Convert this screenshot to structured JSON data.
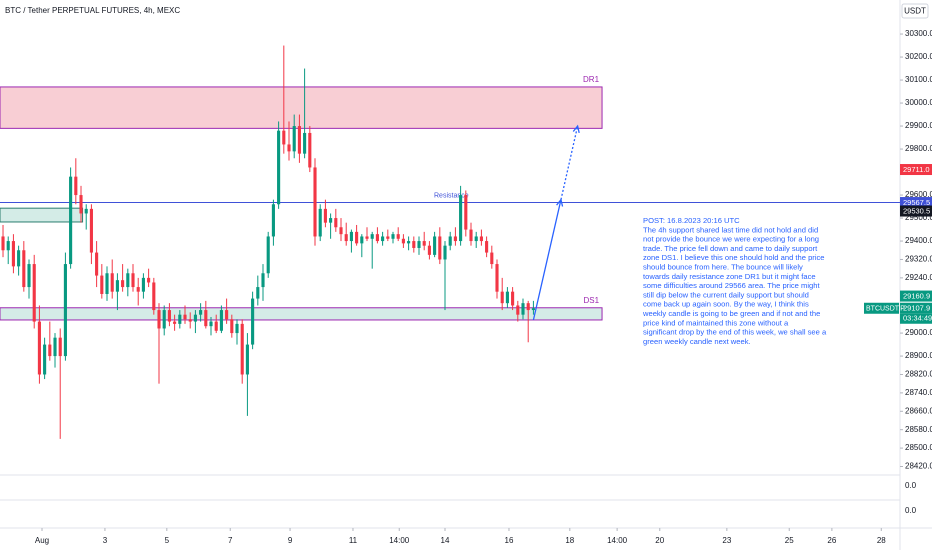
{
  "chart_data": {
    "type": "candlestick",
    "title": "BTC / Tether PERPETUAL FUTURES, 4h, MEXC",
    "currency": "USDT",
    "up_color": "#089981",
    "down_color": "#f23645",
    "grid": false,
    "ylim": [
      28383,
      30448
    ],
    "xlim": [
      -0.58,
      172.5
    ],
    "yticks": [
      {
        "value": 30300,
        "label": "30300.0"
      },
      {
        "value": 30200,
        "label": "30200.0"
      },
      {
        "value": 30100,
        "label": "30100.0"
      },
      {
        "value": 30000,
        "label": "30000.0"
      },
      {
        "value": 29900,
        "label": "29900.0"
      },
      {
        "value": 29800,
        "label": "29800.0"
      },
      {
        "value": 29600,
        "label": "29600.0"
      },
      {
        "value": 29500,
        "label": "29500.0"
      },
      {
        "value": 29400,
        "label": "29400.0"
      },
      {
        "value": 29320,
        "label": "29320.0"
      },
      {
        "value": 29240,
        "label": "29240.0"
      },
      {
        "value": 29000,
        "label": "29000.0"
      },
      {
        "value": 28900,
        "label": "28900.0"
      },
      {
        "value": 28820,
        "label": "28820.0"
      },
      {
        "value": 28740,
        "label": "28740.0"
      },
      {
        "value": 28660,
        "label": "28660.0"
      },
      {
        "value": 28580,
        "label": "28580.0"
      },
      {
        "value": 28500,
        "label": "28500.0"
      },
      {
        "value": 28420,
        "label": "28420.0"
      }
    ],
    "xticks": [
      {
        "value": 7.5,
        "label": "Aug"
      },
      {
        "value": 19.6,
        "label": "3"
      },
      {
        "value": 31.5,
        "label": "5"
      },
      {
        "value": 43.7,
        "label": "7"
      },
      {
        "value": 55.2,
        "label": "9"
      },
      {
        "value": 67.3,
        "label": "11"
      },
      {
        "value": 76.2,
        "label": "14:00"
      },
      {
        "value": 85.0,
        "label": "14"
      },
      {
        "value": 97.3,
        "label": "16"
      },
      {
        "value": 109.0,
        "label": "18"
      },
      {
        "value": 118.1,
        "label": "14:00"
      },
      {
        "value": 126.3,
        "label": "20"
      },
      {
        "value": 139.2,
        "label": "23"
      },
      {
        "value": 151.2,
        "label": "25"
      },
      {
        "value": 159.4,
        "label": "26"
      },
      {
        "value": 168.9,
        "label": "28"
      }
    ],
    "candles": [
      [
        29420,
        29470,
        29330,
        29360
      ],
      [
        29360,
        29420,
        29300,
        29400
      ],
      [
        29400,
        29430,
        29260,
        29290
      ],
      [
        29290,
        29380,
        29250,
        29360
      ],
      [
        29360,
        29400,
        29180,
        29200
      ],
      [
        29200,
        29320,
        29150,
        29300
      ],
      [
        29300,
        29340,
        29020,
        29050
      ],
      [
        29050,
        29120,
        28780,
        28820
      ],
      [
        28820,
        28980,
        28800,
        28950
      ],
      [
        28950,
        29050,
        28880,
        28900
      ],
      [
        28900,
        29000,
        28850,
        28980
      ],
      [
        28980,
        29020,
        28540,
        28900
      ],
      [
        28900,
        29350,
        28880,
        29300
      ],
      [
        29300,
        29720,
        29280,
        29680
      ],
      [
        29680,
        29760,
        29560,
        29600
      ],
      [
        29600,
        29640,
        29480,
        29520
      ],
      [
        29520,
        29560,
        29450,
        29540
      ],
      [
        29540,
        29560,
        29300,
        29350
      ],
      [
        29350,
        29400,
        29200,
        29250
      ],
      [
        29250,
        29300,
        29150,
        29170
      ],
      [
        29170,
        29290,
        29140,
        29260
      ],
      [
        29260,
        29320,
        29150,
        29180
      ],
      [
        29180,
        29260,
        29100,
        29230
      ],
      [
        29230,
        29300,
        29180,
        29200
      ],
      [
        29200,
        29280,
        29160,
        29260
      ],
      [
        29260,
        29300,
        29180,
        29200
      ],
      [
        29200,
        29240,
        29120,
        29180
      ],
      [
        29180,
        29260,
        29150,
        29240
      ],
      [
        29240,
        29280,
        29200,
        29220
      ],
      [
        29220,
        29240,
        29080,
        29100
      ],
      [
        29100,
        29130,
        28780,
        29020
      ],
      [
        29020,
        29120,
        28990,
        29100
      ],
      [
        29100,
        29130,
        29030,
        29050
      ],
      [
        29050,
        29080,
        29010,
        29040
      ],
      [
        29040,
        29100,
        29020,
        29080
      ],
      [
        29080,
        29120,
        29040,
        29060
      ],
      [
        29060,
        29090,
        29020,
        29050
      ],
      [
        29050,
        29100,
        29000,
        29080
      ],
      [
        29080,
        29130,
        29050,
        29100
      ],
      [
        29100,
        29140,
        29020,
        29030
      ],
      [
        29030,
        29070,
        28990,
        29050
      ],
      [
        29050,
        29080,
        29000,
        29010
      ],
      [
        29010,
        29120,
        29000,
        29100
      ],
      [
        29100,
        29150,
        29040,
        29060
      ],
      [
        29060,
        29080,
        28980,
        29000
      ],
      [
        29000,
        29060,
        28950,
        29040
      ],
      [
        29040,
        29060,
        28780,
        28820
      ],
      [
        28820,
        29000,
        28640,
        28950
      ],
      [
        28950,
        29180,
        28930,
        29150
      ],
      [
        29150,
        29250,
        29120,
        29200
      ],
      [
        29200,
        29300,
        29140,
        29260
      ],
      [
        29260,
        29440,
        29240,
        29420
      ],
      [
        29420,
        29580,
        29380,
        29560
      ],
      [
        29560,
        29920,
        29540,
        29880
      ],
      [
        29880,
        30250,
        29780,
        29820
      ],
      [
        29820,
        29920,
        29750,
        29790
      ],
      [
        29790,
        29950,
        29760,
        29900
      ],
      [
        29900,
        29950,
        29740,
        29780
      ],
      [
        29780,
        30150,
        29760,
        29870
      ],
      [
        29870,
        29900,
        29700,
        29720
      ],
      [
        29720,
        29760,
        29380,
        29420
      ],
      [
        29420,
        29560,
        29400,
        29540
      ],
      [
        29540,
        29580,
        29460,
        29480
      ],
      [
        29480,
        29520,
        29410,
        29500
      ],
      [
        29500,
        29540,
        29440,
        29460
      ],
      [
        29460,
        29500,
        29400,
        29430
      ],
      [
        29430,
        29480,
        29380,
        29400
      ],
      [
        29400,
        29450,
        29350,
        29440
      ],
      [
        29440,
        29470,
        29380,
        29390
      ],
      [
        29390,
        29430,
        29330,
        29420
      ],
      [
        29420,
        29460,
        29400,
        29410
      ],
      [
        29410,
        29440,
        29280,
        29430
      ],
      [
        29430,
        29460,
        29390,
        29400
      ],
      [
        29400,
        29440,
        29380,
        29420
      ],
      [
        29420,
        29450,
        29400,
        29410
      ],
      [
        29410,
        29440,
        29390,
        29430
      ],
      [
        29430,
        29460,
        29400,
        29410
      ],
      [
        29410,
        29430,
        29370,
        29390
      ],
      [
        29390,
        29420,
        29360,
        29400
      ],
      [
        29400,
        29420,
        29350,
        29370
      ],
      [
        29370,
        29420,
        29340,
        29400
      ],
      [
        29400,
        29440,
        29360,
        29380
      ],
      [
        29380,
        29400,
        29320,
        29340
      ],
      [
        29340,
        29440,
        29330,
        29420
      ],
      [
        29420,
        29460,
        29300,
        29320
      ],
      [
        29320,
        29400,
        29100,
        29380
      ],
      [
        29380,
        29440,
        29360,
        29420
      ],
      [
        29420,
        29460,
        29380,
        29400
      ],
      [
        29400,
        29640,
        29380,
        29600
      ],
      [
        29600,
        29620,
        29420,
        29450
      ],
      [
        29450,
        29480,
        29380,
        29400
      ],
      [
        29400,
        29440,
        29370,
        29420
      ],
      [
        29420,
        29450,
        29380,
        29400
      ],
      [
        29400,
        29420,
        29330,
        29350
      ],
      [
        29350,
        29380,
        29280,
        29300
      ],
      [
        29300,
        29320,
        29150,
        29180
      ],
      [
        29180,
        29240,
        29100,
        29130
      ],
      [
        29130,
        29200,
        29110,
        29180
      ],
      [
        29180,
        29200,
        29100,
        29120
      ],
      [
        29120,
        29140,
        29050,
        29080
      ],
      [
        29080,
        29150,
        29060,
        29130
      ],
      [
        29130,
        29140,
        28960,
        29100
      ],
      [
        29100,
        29140,
        29080,
        29108
      ]
    ],
    "zones": [
      {
        "label": "DR1",
        "low": 29890,
        "high": 30070,
        "end": 115.2,
        "fill": "#f7c6cc",
        "stroke": "#9c27b0"
      },
      {
        "label": "DS1",
        "low": 29057,
        "high": 29110,
        "end": 115.2,
        "fill": "#cde9e3",
        "stroke": "#9c27b0"
      },
      {
        "low": 29483,
        "high": 29543,
        "end": 15.3,
        "fill": "#cde9e3",
        "stroke": "#2a7d6e"
      }
    ],
    "resistance": {
      "label": "Resistance",
      "value": 29567.5,
      "color": "#3f51d8"
    },
    "arrow": {
      "color": "#2962ff",
      "points": [
        [
          102,
          29057
        ],
        [
          107.3,
          29580
        ],
        [
          110.5,
          29900
        ]
      ]
    },
    "note": [
      "POST: 16.8.2023 20:16 UTC",
      "The 4h support shared last time did not hold and did",
      "not provide the bounce we were expecting for a long",
      "trade. The price fell down and came to daily support",
      "zone DS1. I believe this one should hold and the price",
      "should bounce from here. The bounce will likely",
      "towards daily resistance zone DR1 but it might face",
      "some difficulties around 29566 area. The price might",
      "still dip below the current daily support but should",
      "come back up again soon. By the way, I think this",
      "weekly candle is going to be green and if not and the",
      "price kind of maintained this zone without a",
      "significant drop by the end of this week, we shall see a",
      "green weekly candle next week."
    ],
    "price_tags": [
      {
        "value": 29711,
        "label": "29711.0",
        "color": "#f23645"
      },
      {
        "value": 29567.5,
        "label": "29567.5",
        "color": "#3f51d8"
      },
      {
        "value": 29530.5,
        "label": "29530.5",
        "color": "#131722"
      },
      {
        "value": 29160.9,
        "label": "29160.9",
        "color": "#089981"
      },
      {
        "value": 29107.9,
        "label": "29107.9",
        "color": "#089981"
      }
    ],
    "symbol": "BTCUSDT.P",
    "countdown": "03:34:49",
    "pane_labels": [
      "0.0",
      "0.0"
    ]
  }
}
